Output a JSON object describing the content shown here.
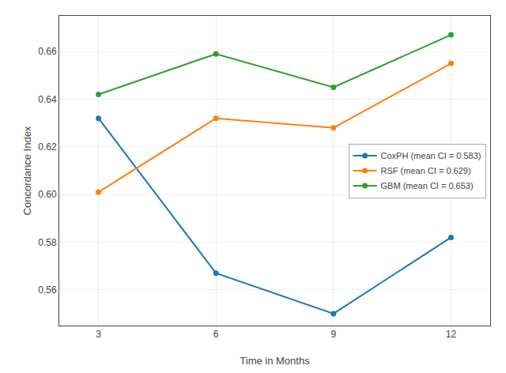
{
  "chart_data": {
    "type": "line",
    "xlabel": "Time in Months",
    "ylabel": "Concordance Index",
    "x": [
      3,
      6,
      9,
      12
    ],
    "series": [
      {
        "name": "CoxPH (mean CI = 0.583)",
        "color": "#1f77b4",
        "values": [
          0.632,
          0.567,
          0.55,
          0.582
        ]
      },
      {
        "name": "RSF (mean CI = 0.629)",
        "color": "#ff7f0e",
        "values": [
          0.601,
          0.632,
          0.628,
          0.655
        ]
      },
      {
        "name": "GBM (mean CI = 0.653)",
        "color": "#2ca02c",
        "values": [
          0.642,
          0.659,
          0.645,
          0.667
        ]
      }
    ],
    "xlim": [
      2,
      13
    ],
    "xticks": [
      3,
      6,
      9,
      12
    ],
    "ylim": [
      0.545,
      0.675
    ],
    "yticks": [
      0.56,
      0.58,
      {
        "value": 0.6,
        "label": "0.60"
      },
      0.62,
      0.64,
      0.66
    ],
    "marker": "circle",
    "grid": true,
    "legend": "center right"
  }
}
